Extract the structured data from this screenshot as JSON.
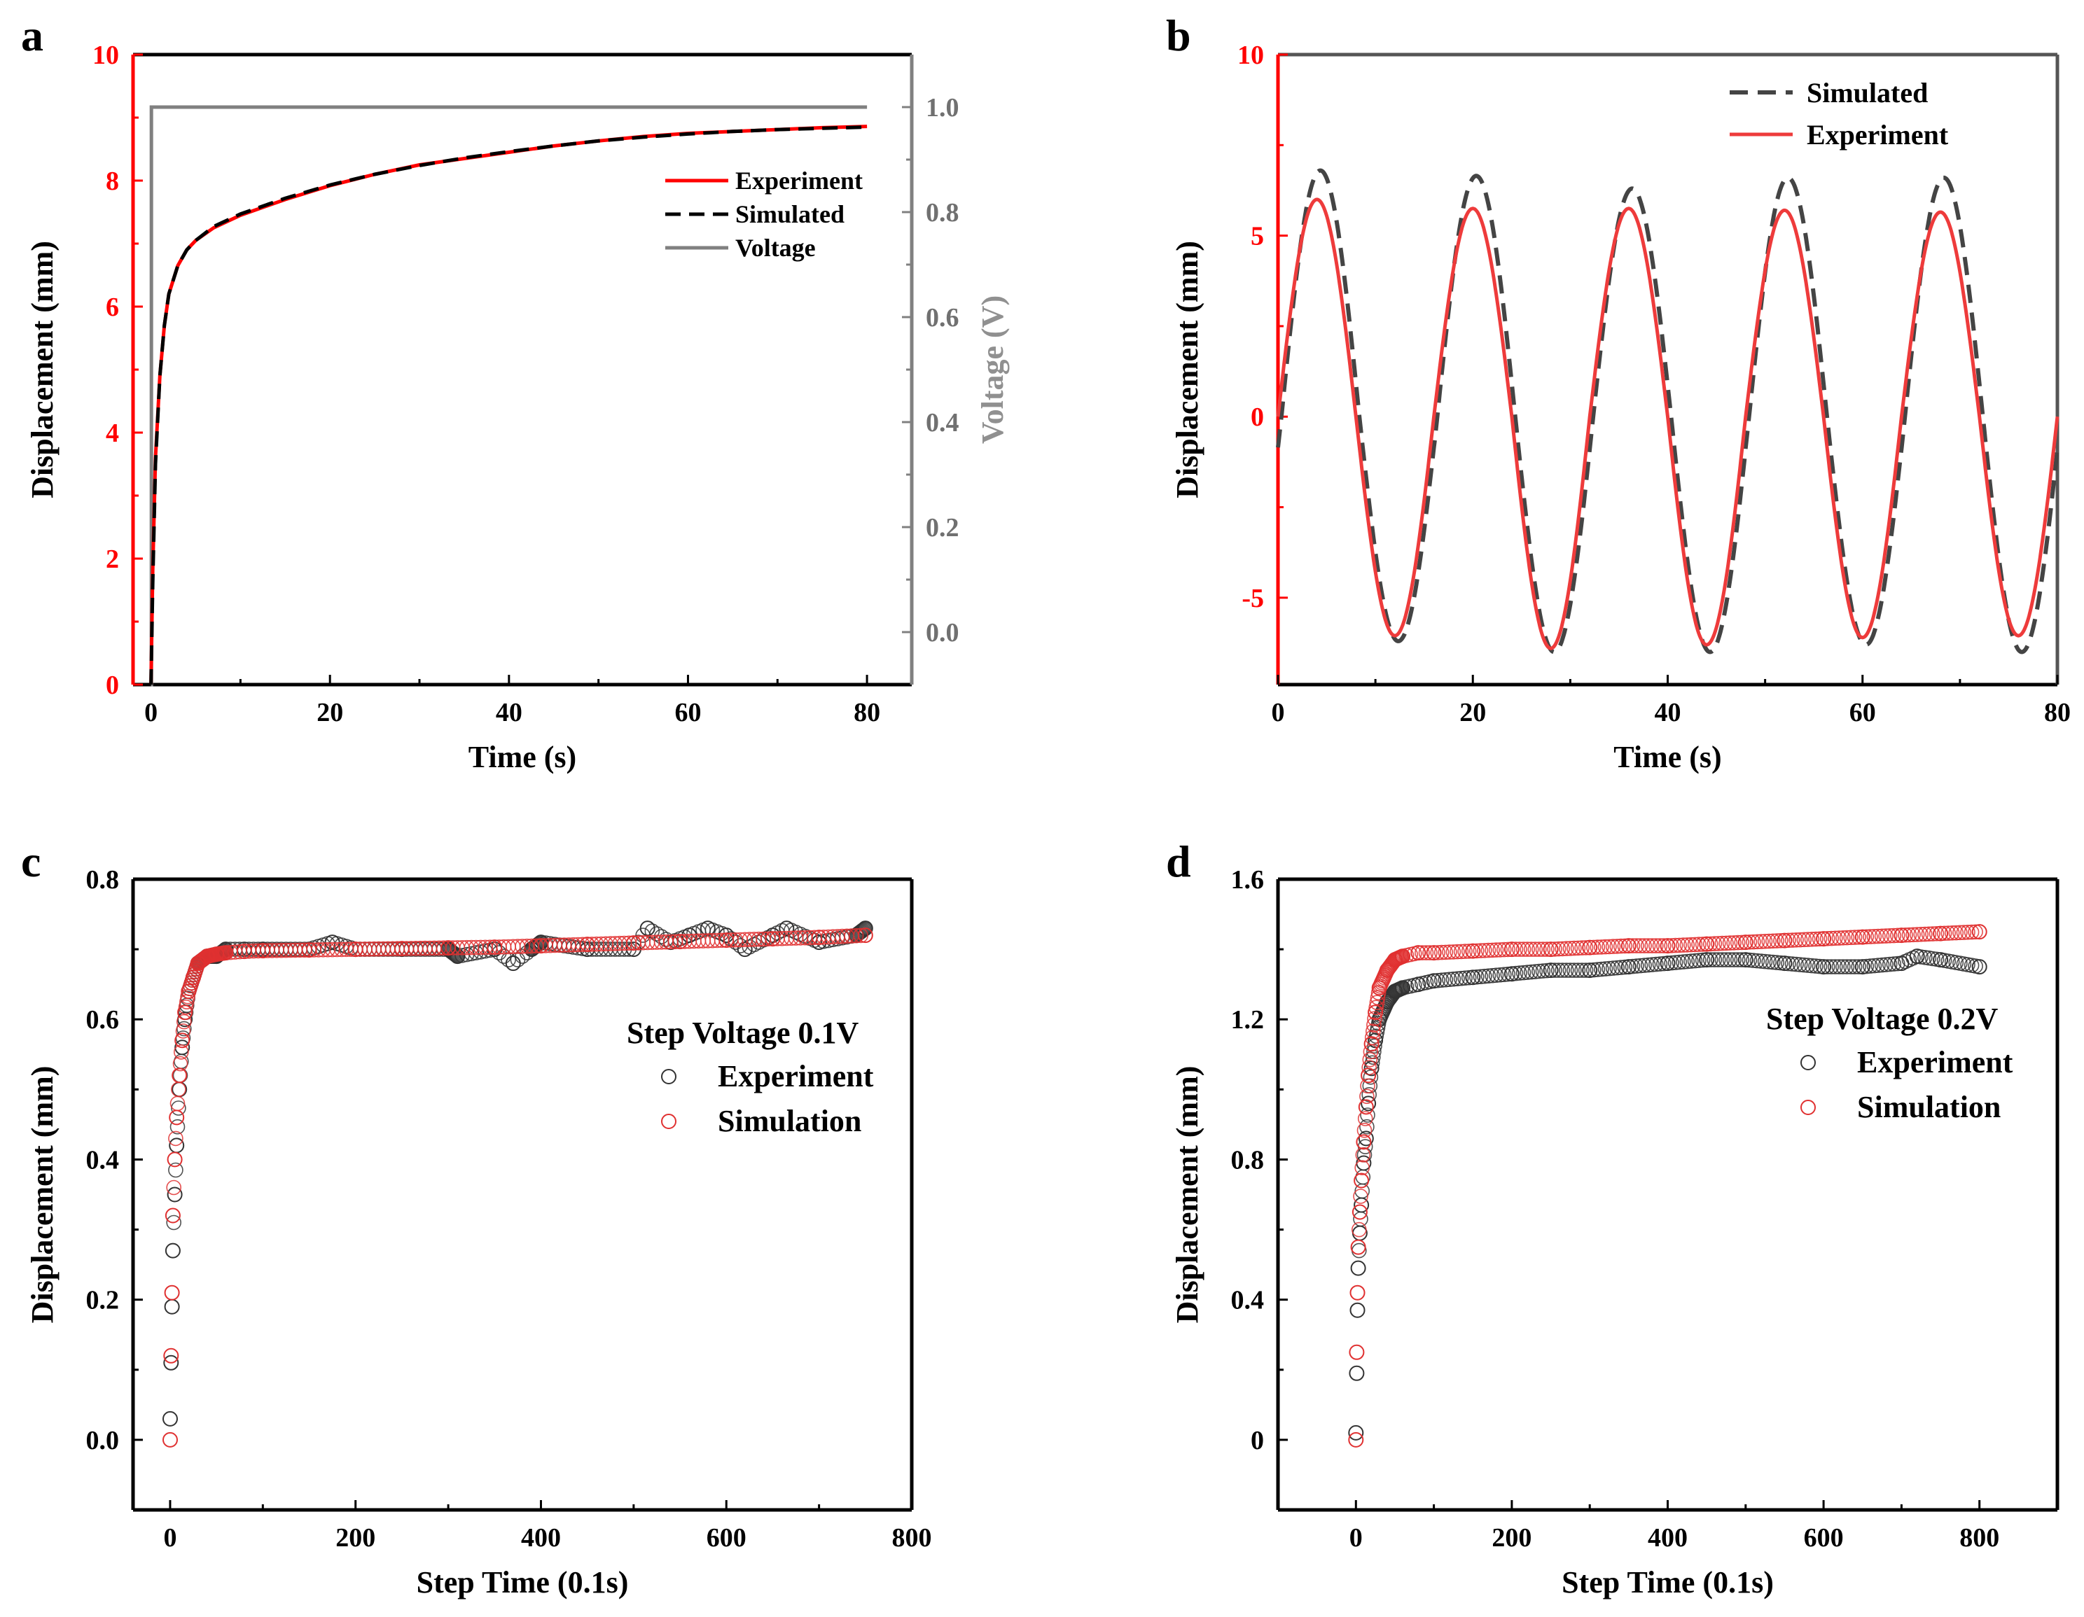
{
  "panels": {
    "a": {
      "letter": "a"
    },
    "b": {
      "letter": "b"
    },
    "c": {
      "letter": "c"
    },
    "d": {
      "letter": "d"
    }
  },
  "colors": {
    "experiment_red": "#ff0000",
    "simulated_dark": "#000000",
    "simulated_gray": "#444444",
    "voltage_gray": "#808080",
    "scatter_gray": "#333333",
    "scatter_red": "#e03030"
  },
  "chart_data": [
    {
      "id": "a",
      "type": "line",
      "xlabel": "Time (s)",
      "ylabel": "Displacement (mm)",
      "ylabel_right": "Voltage (V)",
      "xlim": [
        -2,
        85
      ],
      "ylim": [
        0,
        10
      ],
      "ylim_right": [
        -0.1,
        1.1
      ],
      "xticks": [
        0,
        20,
        40,
        60,
        80
      ],
      "yticks": [
        0,
        2,
        4,
        6,
        8,
        10
      ],
      "yticks_right": [
        0.0,
        0.2,
        0.4,
        0.6,
        0.8,
        1.0
      ],
      "xtick_labels": [
        "0",
        "20",
        "40",
        "60",
        "80"
      ],
      "ytick_labels": [
        "0",
        "2",
        "4",
        "6",
        "8",
        "10"
      ],
      "ytick_labels_right": [
        "0.0",
        "0.2",
        "0.4",
        "0.6",
        "0.8",
        "1.0"
      ],
      "legend": [
        "Experiment",
        "Simulated",
        "Voltage"
      ],
      "legend_position": "upper-right",
      "series": [
        {
          "name": "Experiment",
          "axis": "left",
          "x": [
            0,
            0.2,
            0.5,
            1,
            1.5,
            2,
            3,
            4,
            5,
            7,
            10,
            15,
            20,
            25,
            30,
            35,
            40,
            45,
            50,
            55,
            60,
            65,
            70,
            75,
            80
          ],
          "values": [
            0,
            1.8,
            3.6,
            4.9,
            5.7,
            6.2,
            6.65,
            6.9,
            7.05,
            7.25,
            7.45,
            7.7,
            7.92,
            8.1,
            8.25,
            8.35,
            8.45,
            8.55,
            8.63,
            8.7,
            8.75,
            8.78,
            8.81,
            8.84,
            8.86
          ]
        },
        {
          "name": "Simulated",
          "axis": "left",
          "x": [
            0,
            0.2,
            0.5,
            1,
            1.5,
            2,
            3,
            4,
            5,
            7,
            10,
            15,
            20,
            25,
            30,
            35,
            40,
            45,
            50,
            55,
            60,
            65,
            70,
            75,
            80
          ],
          "values": [
            0,
            1.6,
            3.5,
            4.9,
            5.7,
            6.2,
            6.65,
            6.9,
            7.05,
            7.27,
            7.47,
            7.72,
            7.93,
            8.1,
            8.24,
            8.36,
            8.46,
            8.55,
            8.63,
            8.69,
            8.74,
            8.78,
            8.81,
            8.83,
            8.85
          ]
        },
        {
          "name": "Voltage",
          "axis": "right",
          "x": [
            0,
            0.05,
            0.05,
            80
          ],
          "values": [
            -0.1,
            -0.1,
            1.0,
            1.0
          ]
        }
      ]
    },
    {
      "id": "b",
      "type": "line",
      "xlabel": "Time (s)",
      "ylabel": "Displacement (mm)",
      "xlim": [
        0,
        80
      ],
      "ylim": [
        -7.4,
        10
      ],
      "xticks": [
        0,
        20,
        40,
        60,
        80
      ],
      "yticks": [
        -5,
        0,
        5,
        10
      ],
      "xtick_labels": [
        "0",
        "20",
        "40",
        "60",
        "80"
      ],
      "ytick_labels": [
        "-5",
        "0",
        "5",
        "10"
      ],
      "legend": [
        "Simulated",
        "Experiment"
      ],
      "legend_position": "upper-right",
      "series": [
        {
          "name": "Simulated",
          "period": 16,
          "amplitude_pos": [
            6.8,
            6.65,
            6.3,
            6.6,
            6.6
          ],
          "amplitude_neg": [
            6.2,
            6.5,
            6.5,
            6.3,
            6.5
          ],
          "phase_shift": 0.35
        },
        {
          "name": "Experiment",
          "period": 16,
          "amplitude_pos": [
            6.0,
            5.75,
            5.75,
            5.7,
            5.65
          ],
          "amplitude_neg": [
            6.05,
            6.4,
            6.3,
            6.1,
            6.05
          ],
          "phase_shift": 0
        }
      ]
    },
    {
      "id": "c",
      "type": "scatter",
      "xlabel": "Step Time (0.1s)",
      "ylabel": "Displacement (mm)",
      "xlim": [
        -40,
        800
      ],
      "ylim": [
        -0.1,
        0.8
      ],
      "xticks": [
        0,
        200,
        400,
        600,
        800
      ],
      "yticks": [
        0.0,
        0.2,
        0.4,
        0.6,
        0.8
      ],
      "xtick_labels": [
        "0",
        "200",
        "400",
        "600",
        "800"
      ],
      "ytick_labels": [
        "0.0",
        "0.2",
        "0.4",
        "0.6",
        "0.8"
      ],
      "legend_title": "Step Voltage 0.1V",
      "legend": [
        "Experiment",
        "Simulation"
      ],
      "legend_position": "right",
      "series": [
        {
          "name": "Experiment",
          "x": [
            0,
            1,
            2,
            3,
            5,
            7,
            10,
            13,
            16,
            20,
            25,
            30,
            40,
            50,
            60,
            80,
            100,
            150,
            175,
            200,
            250,
            300,
            310,
            350,
            370,
            390,
            400,
            450,
            500,
            515,
            540,
            560,
            580,
            600,
            620,
            650,
            665,
            700,
            740,
            750
          ],
          "values": [
            0.03,
            0.11,
            0.19,
            0.27,
            0.35,
            0.42,
            0.5,
            0.56,
            0.6,
            0.64,
            0.66,
            0.68,
            0.69,
            0.69,
            0.7,
            0.7,
            0.7,
            0.7,
            0.71,
            0.7,
            0.7,
            0.7,
            0.69,
            0.7,
            0.68,
            0.7,
            0.71,
            0.7,
            0.7,
            0.73,
            0.71,
            0.72,
            0.73,
            0.72,
            0.7,
            0.72,
            0.73,
            0.71,
            0.72,
            0.73
          ]
        },
        {
          "name": "Simulation",
          "x": [
            0,
            1,
            2,
            3,
            5,
            7,
            10,
            13,
            16,
            20,
            25,
            30,
            40,
            50,
            60,
            80,
            100,
            150,
            200,
            250,
            300,
            350,
            400,
            450,
            500,
            550,
            600,
            650,
            700,
            750
          ],
          "values": [
            0.0,
            0.12,
            0.21,
            0.32,
            0.4,
            0.46,
            0.52,
            0.57,
            0.61,
            0.64,
            0.66,
            0.68,
            0.69,
            0.693,
            0.695,
            0.697,
            0.698,
            0.699,
            0.7,
            0.701,
            0.702,
            0.703,
            0.705,
            0.707,
            0.709,
            0.711,
            0.713,
            0.715,
            0.717,
            0.72
          ]
        }
      ]
    },
    {
      "id": "d",
      "type": "scatter",
      "xlabel": "Step Time (0.1s)",
      "ylabel": "Displacement (mm)",
      "xlim": [
        -100,
        900
      ],
      "ylim": [
        -0.2,
        1.6
      ],
      "xticks": [
        0,
        200,
        400,
        600,
        800
      ],
      "yticks": [
        0,
        0.4,
        0.8,
        1.2,
        1.6
      ],
      "xtick_labels": [
        "0",
        "200",
        "400",
        "600",
        "800"
      ],
      "ytick_labels": [
        "0",
        "0.4",
        "0.8",
        "1.2",
        "1.6"
      ],
      "legend_title": "Step Voltage 0.2V",
      "legend": [
        "Experiment",
        "Simulation"
      ],
      "legend_position": "right",
      "series": [
        {
          "name": "Experiment",
          "x": [
            0,
            1,
            2,
            3,
            5,
            7,
            10,
            13,
            16,
            20,
            25,
            30,
            40,
            50,
            60,
            80,
            100,
            150,
            200,
            250,
            300,
            350,
            400,
            450,
            500,
            550,
            600,
            650,
            700,
            720,
            750,
            800
          ],
          "values": [
            0.02,
            0.19,
            0.37,
            0.49,
            0.59,
            0.67,
            0.79,
            0.86,
            0.96,
            1.06,
            1.14,
            1.2,
            1.25,
            1.28,
            1.29,
            1.3,
            1.31,
            1.32,
            1.33,
            1.34,
            1.34,
            1.35,
            1.36,
            1.37,
            1.37,
            1.36,
            1.35,
            1.35,
            1.36,
            1.38,
            1.37,
            1.35
          ]
        },
        {
          "name": "Simulation",
          "x": [
            0,
            1,
            2,
            3,
            5,
            7,
            10,
            13,
            16,
            20,
            25,
            30,
            40,
            50,
            60,
            80,
            100,
            150,
            200,
            250,
            300,
            350,
            400,
            450,
            500,
            550,
            600,
            650,
            700,
            750,
            800
          ],
          "values": [
            0.0,
            0.25,
            0.42,
            0.55,
            0.65,
            0.74,
            0.85,
            0.95,
            1.04,
            1.13,
            1.22,
            1.29,
            1.34,
            1.37,
            1.38,
            1.39,
            1.39,
            1.395,
            1.4,
            1.4,
            1.405,
            1.41,
            1.41,
            1.415,
            1.42,
            1.425,
            1.43,
            1.435,
            1.44,
            1.445,
            1.45
          ]
        }
      ]
    }
  ]
}
